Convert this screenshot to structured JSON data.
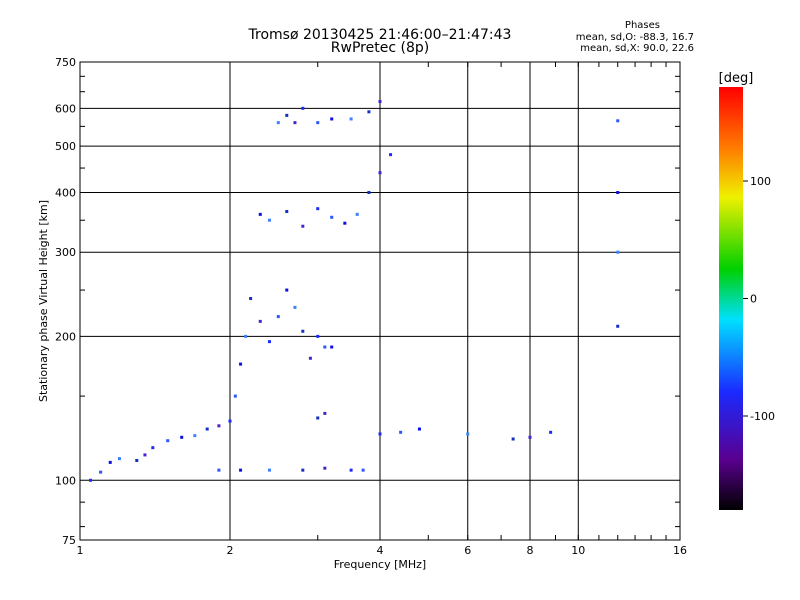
{
  "header": {
    "title": "Tromsø 20130425 21:46:00–21:47:43",
    "subtitle": "RwPretec (8p)"
  },
  "phase_box": {
    "heading": "Phases",
    "line1": "mean, sd,O:  -88.3, 16.7",
    "line2": "mean, sd,X:  90.0, 22.6"
  },
  "colorbar": {
    "label": "[deg]",
    "ticks": [
      {
        "value": 100,
        "label": "100"
      },
      {
        "value": 0,
        "label": "0"
      },
      {
        "value": -100,
        "label": "-100"
      }
    ],
    "range": [
      -180,
      180
    ]
  },
  "chart_data": {
    "type": "scatter",
    "title": "Tromsø 20130425 21:46:00–21:47:43",
    "subtitle": "RwPretec (8p)",
    "xlabel": "Frequency [MHz]",
    "ylabel": "Stationary phase Virtual Height [km]",
    "xscale": "log",
    "yscale": "log",
    "xlim": [
      1,
      16
    ],
    "ylim": [
      75,
      750
    ],
    "xticks": [
      1,
      2,
      4,
      6,
      8,
      10,
      16
    ],
    "yticks": [
      75,
      100,
      200,
      300,
      400,
      500,
      600,
      750
    ],
    "grid": true,
    "color_scale": "phase [deg], -180 (black) to 180 (red)",
    "series": [
      {
        "points": [
          [
            1.05,
            100
          ],
          [
            1.1,
            104
          ],
          [
            1.15,
            109
          ],
          [
            1.2,
            111
          ],
          [
            1.3,
            110
          ],
          [
            1.35,
            113
          ],
          [
            1.4,
            117
          ],
          [
            1.5,
            121
          ],
          [
            1.6,
            123
          ],
          [
            1.7,
            124
          ],
          [
            1.8,
            128
          ],
          [
            1.9,
            130
          ],
          [
            2.0,
            133
          ],
          [
            2.05,
            150
          ],
          [
            2.1,
            175
          ],
          [
            2.15,
            200
          ],
          [
            2.2,
            240
          ],
          [
            2.3,
            215
          ],
          [
            2.4,
            195
          ],
          [
            2.5,
            220
          ],
          [
            2.6,
            250
          ],
          [
            2.7,
            230
          ],
          [
            2.8,
            205
          ],
          [
            2.9,
            180
          ],
          [
            3.0,
            200
          ],
          [
            3.1,
            190
          ],
          [
            3.2,
            190
          ]
        ]
      },
      {
        "points": [
          [
            1.9,
            105
          ],
          [
            2.1,
            105
          ],
          [
            2.4,
            105
          ],
          [
            2.8,
            105
          ],
          [
            3.1,
            106
          ],
          [
            3.5,
            105
          ],
          [
            3.7,
            105
          ]
        ]
      },
      {
        "points": [
          [
            2.3,
            360
          ],
          [
            2.4,
            350
          ],
          [
            2.6,
            365
          ],
          [
            2.8,
            340
          ],
          [
            3.0,
            370
          ],
          [
            3.2,
            355
          ],
          [
            3.4,
            345
          ],
          [
            3.6,
            360
          ],
          [
            3.8,
            400
          ],
          [
            4.0,
            440
          ],
          [
            4.2,
            480
          ]
        ]
      },
      {
        "points": [
          [
            2.5,
            560
          ],
          [
            2.6,
            580
          ],
          [
            2.7,
            560
          ],
          [
            2.8,
            600
          ],
          [
            3.0,
            560
          ],
          [
            3.2,
            570
          ],
          [
            3.5,
            570
          ],
          [
            3.8,
            590
          ],
          [
            4.0,
            620
          ]
        ]
      },
      {
        "points": [
          [
            3.0,
            135
          ],
          [
            3.1,
            138
          ],
          [
            4.0,
            125
          ],
          [
            4.4,
            126
          ],
          [
            4.8,
            128
          ],
          [
            6.0,
            125
          ],
          [
            7.4,
            122
          ],
          [
            8.0,
            123
          ],
          [
            8.8,
            126
          ],
          [
            12.0,
            565
          ],
          [
            12.0,
            400
          ],
          [
            12.0,
            300
          ],
          [
            12.0,
            210
          ]
        ]
      }
    ]
  }
}
